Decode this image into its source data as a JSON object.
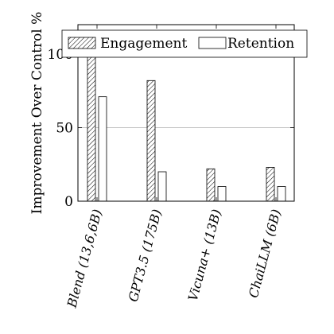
{
  "chart_data": {
    "type": "bar",
    "categories": [
      "Blend (13,6,6B)",
      "GPT3.5 (175B)",
      "Vicuna+ (13B)",
      "ChaiLLM (6B)"
    ],
    "series": [
      {
        "name": "Engagement",
        "values": [
          103,
          82,
          22,
          23
        ],
        "pattern": "hatch"
      },
      {
        "name": "Retention",
        "values": [
          71,
          20,
          10,
          10
        ],
        "pattern": "solid-white"
      }
    ],
    "title": "",
    "xlabel": "",
    "ylabel": "Improvement Over Control %",
    "ylim": [
      0,
      120
    ],
    "yticks": [
      0,
      50,
      100
    ],
    "grid": "horizontal at 50",
    "legend": "top, inside, horizontal",
    "colors": {
      "bar_fill": "#ffffff",
      "stroke": "#000000",
      "grid": "#b0b0b0"
    }
  }
}
